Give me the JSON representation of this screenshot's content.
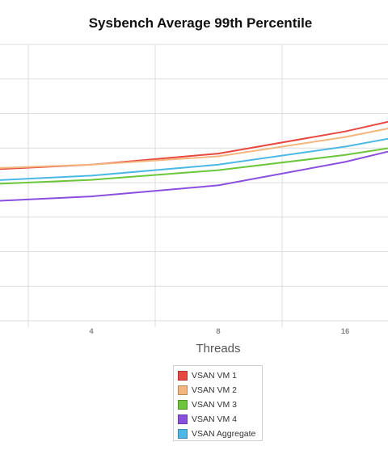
{
  "chart_data": {
    "type": "line",
    "title": "Sysbench Average 99th Percentile",
    "xlabel": "Threads",
    "ylabel": "",
    "x": [
      "4",
      "8",
      "16"
    ],
    "series": [
      {
        "name": "VSAN VM 1",
        "color": "#e8483f",
        "values": [
          0.565,
          0.605,
          0.685
        ]
      },
      {
        "name": "VSAN VM 2",
        "color": "#f2b67e",
        "values": [
          0.565,
          0.595,
          0.665
        ]
      },
      {
        "name": "VSAN VM 3",
        "color": "#6cc63a",
        "values": [
          0.51,
          0.545,
          0.6
        ]
      },
      {
        "name": "VSAN VM 4",
        "color": "#8b4fe0",
        "values": [
          0.45,
          0.49,
          0.575
        ]
      },
      {
        "name": "VSAN Aggregate",
        "color": "#4cb8e6",
        "values": [
          0.525,
          0.565,
          0.63
        ]
      }
    ],
    "grid": true,
    "legend_position": "bottom"
  }
}
